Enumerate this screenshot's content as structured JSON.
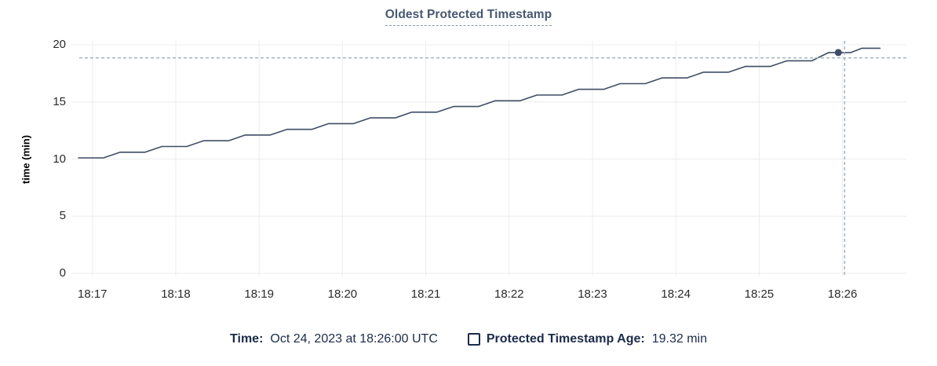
{
  "chart": {
    "title": "Oldest Protected Timestamp"
  },
  "chart_data": {
    "type": "line",
    "title": "Oldest Protected Timestamp",
    "xlabel": "",
    "ylabel": "time (min)",
    "ylim": [
      0,
      20
    ],
    "y_ticks": [
      0,
      5,
      10,
      15,
      20
    ],
    "x_domain_seconds": [
      -14,
      586
    ],
    "x_ticks": [
      {
        "t": 0,
        "label": "18:17"
      },
      {
        "t": 60,
        "label": "18:18"
      },
      {
        "t": 120,
        "label": "18:19"
      },
      {
        "t": 180,
        "label": "18:20"
      },
      {
        "t": 240,
        "label": "18:21"
      },
      {
        "t": 300,
        "label": "18:22"
      },
      {
        "t": 360,
        "label": "18:23"
      },
      {
        "t": 420,
        "label": "18:24"
      },
      {
        "t": 480,
        "label": "18:25"
      },
      {
        "t": 540,
        "label": "18:26"
      }
    ],
    "grid": true,
    "legend_position": "bottom",
    "series": [
      {
        "name": "Protected Timestamp Age",
        "color": "#3f4d66",
        "points": [
          [
            -10,
            10.1
          ],
          [
            8,
            10.1
          ],
          [
            20,
            10.6
          ],
          [
            38,
            10.6
          ],
          [
            50,
            11.1
          ],
          [
            68,
            11.1
          ],
          [
            80,
            11.6
          ],
          [
            98,
            11.6
          ],
          [
            110,
            12.1
          ],
          [
            128,
            12.1
          ],
          [
            140,
            12.6
          ],
          [
            158,
            12.6
          ],
          [
            170,
            13.1
          ],
          [
            188,
            13.1
          ],
          [
            200,
            13.6
          ],
          [
            218,
            13.6
          ],
          [
            230,
            14.1
          ],
          [
            248,
            14.1
          ],
          [
            260,
            14.6
          ],
          [
            278,
            14.6
          ],
          [
            290,
            15.1
          ],
          [
            308,
            15.1
          ],
          [
            320,
            15.6
          ],
          [
            338,
            15.6
          ],
          [
            350,
            16.1
          ],
          [
            368,
            16.1
          ],
          [
            380,
            16.6
          ],
          [
            398,
            16.6
          ],
          [
            410,
            17.1
          ],
          [
            428,
            17.1
          ],
          [
            440,
            17.6
          ],
          [
            458,
            17.6
          ],
          [
            470,
            18.1
          ],
          [
            488,
            18.1
          ],
          [
            500,
            18.6
          ],
          [
            518,
            18.6
          ],
          [
            530,
            19.32
          ],
          [
            546,
            19.32
          ],
          [
            554,
            19.7
          ],
          [
            567,
            19.7
          ]
        ]
      }
    ],
    "hover": {
      "time_label": "Oct 24, 2023 at 18:26:00 UTC",
      "value_label": "19.32 min",
      "value": 19.32,
      "crosshair_t": 541.5,
      "crosshair_value": 18.85,
      "dot_t": 537,
      "dot_value": 19.32
    }
  },
  "legend": {
    "time_label": "Time:",
    "series_label": "Protected Timestamp Age:"
  },
  "colors": {
    "title": "#475872",
    "title_underline": "#8496ad",
    "line": "#3f4d66",
    "grid": "#ececec",
    "crosshair": "#9fb0bf",
    "tick_text": "#2b2b2b",
    "legend_text": "#1c2b4a"
  }
}
